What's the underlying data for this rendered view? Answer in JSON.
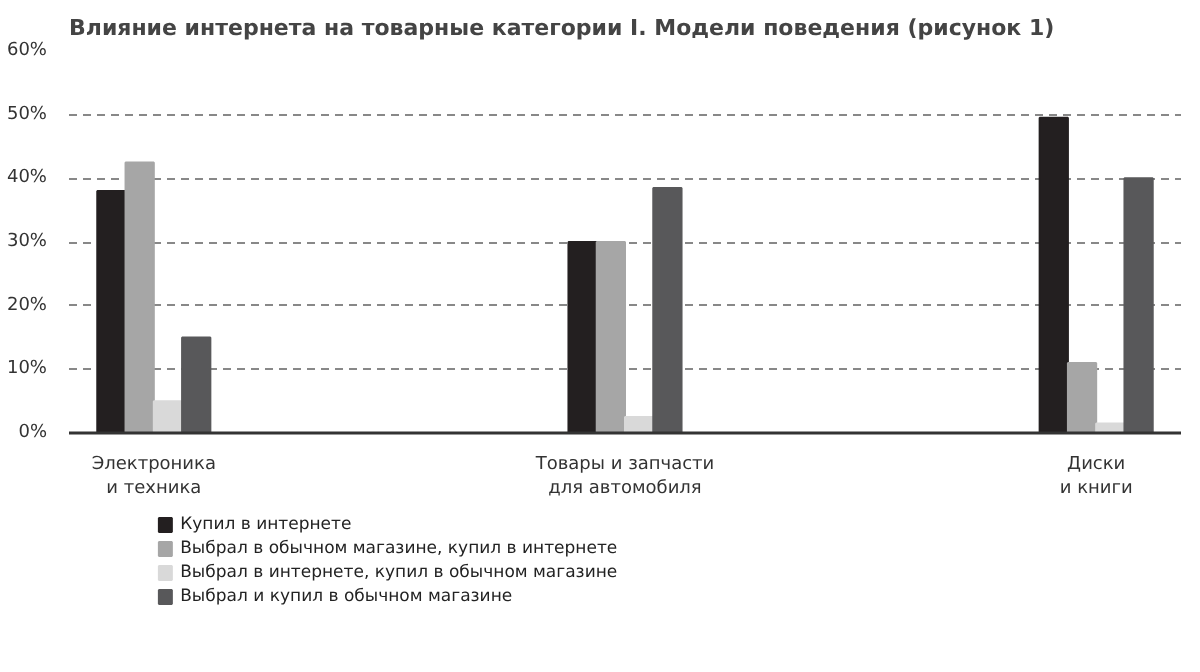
{
  "chart_data": {
    "type": "bar",
    "title": "Влияние интернета на товарные категории I. Модели поведения",
    "subtitle": "(рисунок 1)",
    "categories": [
      "Электроника\nи техника",
      "Товары и запчасти\nдля автомобиля",
      "Диски\nи книги"
    ],
    "series": [
      {
        "name": "Купил в интернете",
        "color": "#231f20",
        "values": [
          38,
          30,
          49.5
        ]
      },
      {
        "name": "Выбрал в обычном магазине, купил в интернете",
        "color": "#a6a6a6",
        "values": [
          42.5,
          30,
          11
        ]
      },
      {
        "name": "Выбрал в интернете, купил в обычном магазине",
        "color": "#d9d9d9",
        "values": [
          5,
          2.5,
          1.5
        ]
      },
      {
        "name": "Выбрал и купил в обычном магазине",
        "color": "#58585a",
        "values": [
          15,
          38.5,
          40
        ]
      }
    ],
    "ylim": [
      0,
      60
    ],
    "yticks": [
      {
        "value": 0,
        "label": "0%"
      },
      {
        "value": 10,
        "label": "10%"
      },
      {
        "value": 20,
        "label": "20%"
      },
      {
        "value": 30,
        "label": "30%"
      },
      {
        "value": 40,
        "label": "40%"
      },
      {
        "value": 50,
        "label": "50%"
      },
      {
        "value": 60,
        "label": "60%"
      }
    ],
    "grid": "y",
    "legend": "bottom left"
  }
}
